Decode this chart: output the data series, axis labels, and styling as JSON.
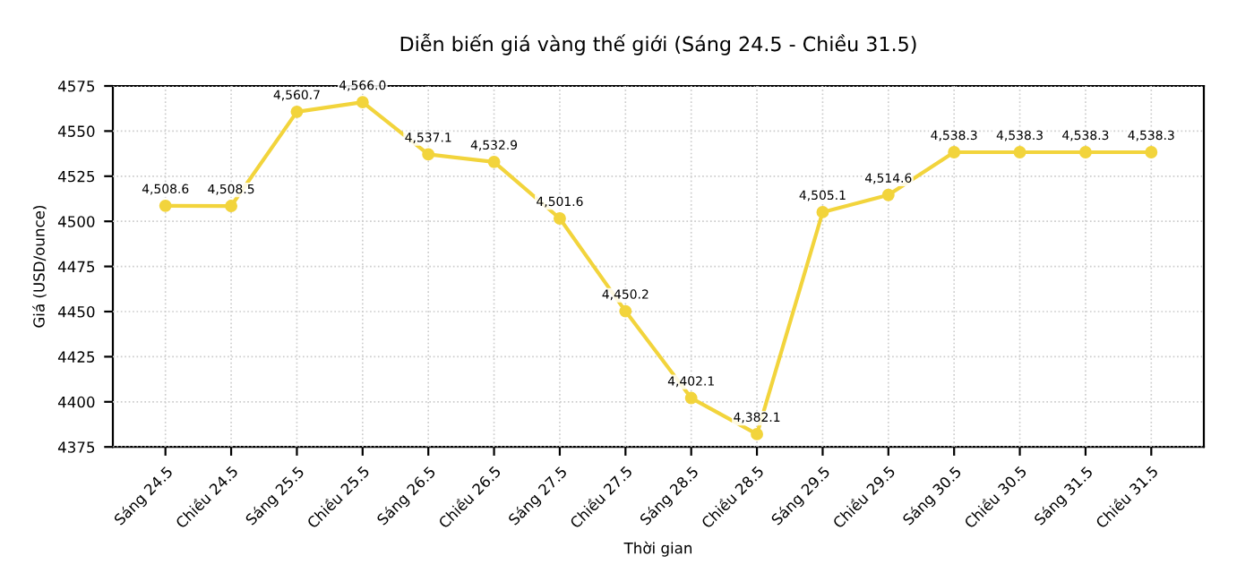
{
  "chart_data": {
    "type": "line",
    "title": "Diễn biến giá vàng thế giới (Sáng 24.5 - Chiều 31.5)",
    "xlabel": "Thời gian",
    "ylabel": "Giá (USD/ounce)",
    "categories": [
      "Sáng 24.5",
      "Chiều 24.5",
      "Sáng 25.5",
      "Chiều 25.5",
      "Sáng 26.5",
      "Chiều 26.5",
      "Sáng 27.5",
      "Chiều 27.5",
      "Sáng 28.5",
      "Chiều 28.5",
      "Sáng 29.5",
      "Chiều 29.5",
      "Sáng 30.5",
      "Chiều 30.5",
      "Sáng 31.5",
      "Chiều 31.5"
    ],
    "series": [
      {
        "color": "#f2d43c",
        "values": [
          4508.6,
          4508.5,
          4560.7,
          4566.0,
          4537.1,
          4532.9,
          4501.6,
          4450.2,
          4402.1,
          4382.1,
          4505.1,
          4514.6,
          4538.3,
          4538.3,
          4538.3,
          4538.3
        ],
        "value_labels": [
          "4,508.6",
          "4,508.5",
          "4,560.7",
          "4,566.0",
          "4,537.1",
          "4,532.9",
          "4,501.6",
          "4,450.2",
          "4,402.1",
          "4,382.1",
          "4,505.1",
          "4,514.6",
          "4,538.3",
          "4,538.3",
          "4,538.3",
          "4,538.3"
        ]
      }
    ],
    "ylim": [
      4375,
      4575
    ],
    "yticks": [
      4375,
      4400,
      4425,
      4450,
      4475,
      4500,
      4525,
      4550,
      4575
    ],
    "grid": true,
    "marker": "circle",
    "line_style": "solid"
  }
}
